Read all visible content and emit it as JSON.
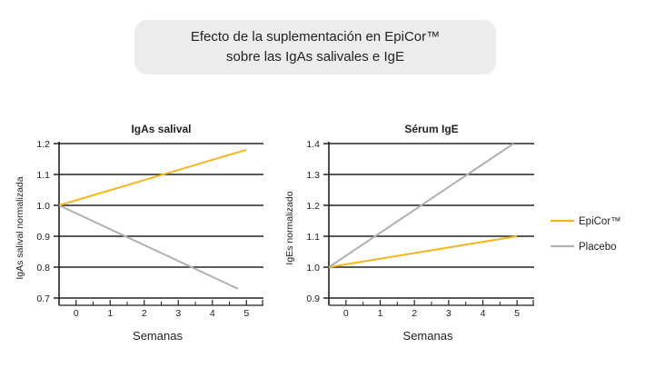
{
  "header": {
    "title_line1": "Efecto de la suplementación en EpiCor™",
    "title_line2": "sobre las IgAs salivales e IgE"
  },
  "colors": {
    "epicor": "#f5b51d",
    "placebo": "#b0b0b0",
    "grid": "#222222"
  },
  "legend": {
    "placement": "right",
    "items": [
      {
        "label": "EpiCor™",
        "color": "#f5b51d"
      },
      {
        "label": "Placebo",
        "color": "#b0b0b0"
      }
    ]
  },
  "chart_data": [
    {
      "type": "line",
      "title": "IgAs salival",
      "xlabel": "Semanas",
      "ylabel": "IgAs salival normalizada",
      "x_ticks": [
        0,
        1,
        2,
        3,
        4,
        5
      ],
      "x_tick_labels": [
        "0",
        "1",
        "2",
        "3",
        "4",
        "5"
      ],
      "y_ticks": [
        0.7,
        0.8,
        0.9,
        1.0,
        1.1,
        1.2
      ],
      "y_tick_labels": [
        "0.7",
        "0.8",
        "0.9",
        "1.0",
        "1.1",
        "1.2"
      ],
      "ylim": [
        0.7,
        1.2
      ],
      "xlim": [
        -0.5,
        5.5
      ],
      "grid": true,
      "series": [
        {
          "name": "EpiCor™",
          "color": "#f5b51d",
          "x": [
            -0.5,
            5
          ],
          "y": [
            1.0,
            1.18
          ]
        },
        {
          "name": "Placebo",
          "color": "#b0b0b0",
          "x": [
            -0.5,
            4.75
          ],
          "y": [
            1.0,
            0.73
          ]
        }
      ]
    },
    {
      "type": "line",
      "title": "Sérum IgE",
      "xlabel": "Semanas",
      "ylabel": "IgEs normalizado",
      "x_ticks": [
        0,
        1,
        2,
        3,
        4,
        5
      ],
      "x_tick_labels": [
        "0",
        "1",
        "2",
        "3",
        "4",
        "5"
      ],
      "y_ticks": [
        0.9,
        1.0,
        1.1,
        1.2,
        1.3,
        1.4
      ],
      "y_tick_labels": [
        "0.9",
        "1.0",
        "1.1",
        "1.2",
        "1.3",
        "1.4"
      ],
      "ylim": [
        0.9,
        1.4
      ],
      "xlim": [
        -0.5,
        5.5
      ],
      "grid": true,
      "series": [
        {
          "name": "EpiCor™",
          "color": "#f5b51d",
          "x": [
            -0.5,
            5
          ],
          "y": [
            1.0,
            1.1
          ]
        },
        {
          "name": "Placebo",
          "color": "#b0b0b0",
          "x": [
            -0.5,
            4.9
          ],
          "y": [
            1.0,
            1.4
          ]
        }
      ]
    }
  ]
}
